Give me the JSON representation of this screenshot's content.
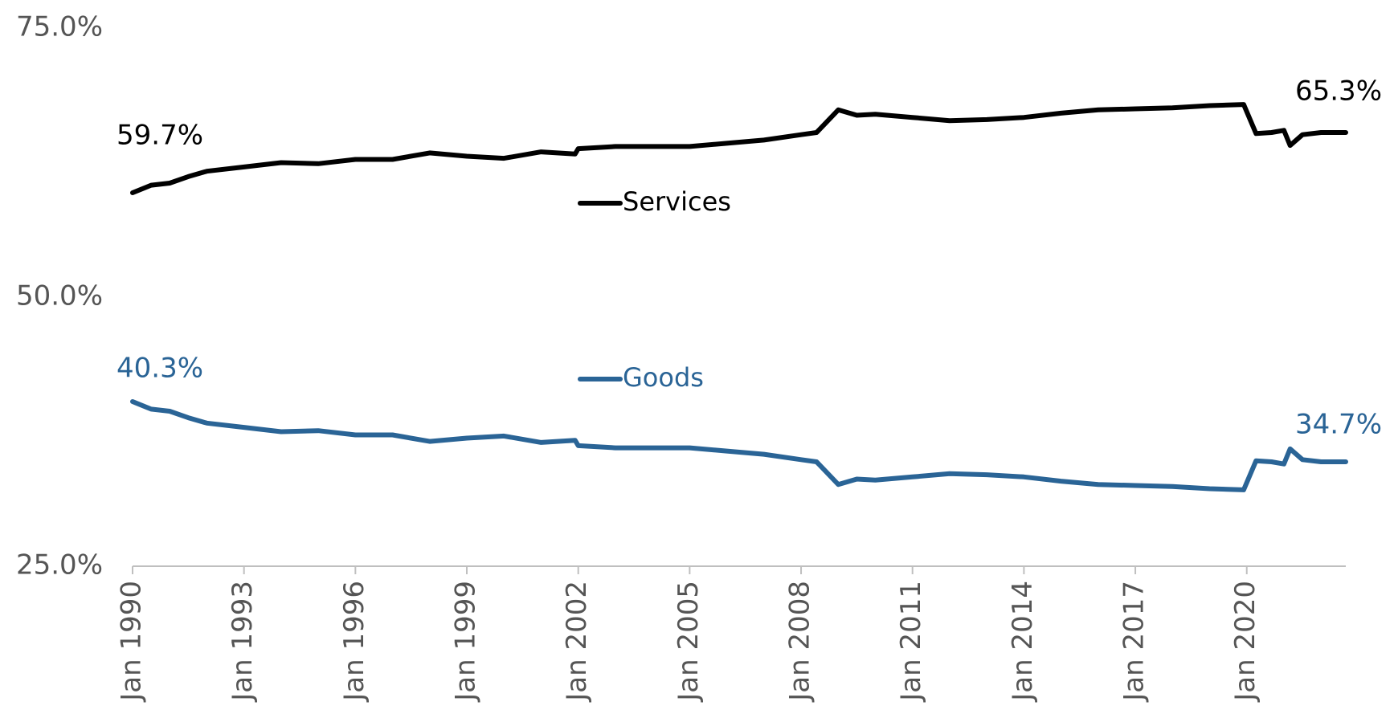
{
  "chart_data": {
    "type": "line",
    "ylim": [
      25,
      75
    ],
    "xlim": [
      "1990-01",
      "2022-09"
    ],
    "yticks": [
      {
        "value": 25,
        "label": "25.0%"
      },
      {
        "value": 50,
        "label": "50.0%"
      },
      {
        "value": 75,
        "label": "75.0%"
      }
    ],
    "xticks": [
      {
        "date": "1990-01",
        "label": "Jan 1990"
      },
      {
        "date": "1993-01",
        "label": "Jan 1993"
      },
      {
        "date": "1996-01",
        "label": "Jan 1996"
      },
      {
        "date": "1999-01",
        "label": "Jan 1999"
      },
      {
        "date": "2002-01",
        "label": "Jan 2002"
      },
      {
        "date": "2005-01",
        "label": "Jan 2005"
      },
      {
        "date": "2008-01",
        "label": "Jan 2008"
      },
      {
        "date": "2011-01",
        "label": "Jan 2011"
      },
      {
        "date": "2014-01",
        "label": "Jan 2014"
      },
      {
        "date": "2017-01",
        "label": "Jan 2017"
      },
      {
        "date": "2020-01",
        "label": "Jan 2020"
      }
    ],
    "series": [
      {
        "name": "Services",
        "color": "#000000",
        "points": [
          [
            "1990-01",
            59.7
          ],
          [
            "1990-07",
            60.4
          ],
          [
            "1991-01",
            60.6
          ],
          [
            "1991-07",
            61.2
          ],
          [
            "1992-01",
            61.7
          ],
          [
            "1993-01",
            62.1
          ],
          [
            "1994-01",
            62.5
          ],
          [
            "1995-01",
            62.4
          ],
          [
            "1996-01",
            62.8
          ],
          [
            "1997-01",
            62.8
          ],
          [
            "1998-01",
            63.4
          ],
          [
            "1999-01",
            63.1
          ],
          [
            "2000-01",
            62.9
          ],
          [
            "2001-01",
            63.5
          ],
          [
            "2001-12",
            63.3
          ],
          [
            "2002-01",
            63.8
          ],
          [
            "2003-01",
            64.0
          ],
          [
            "2004-01",
            64.0
          ],
          [
            "2005-01",
            64.0
          ],
          [
            "2006-01",
            64.3
          ],
          [
            "2007-01",
            64.6
          ],
          [
            "2008-01",
            65.1
          ],
          [
            "2008-06",
            65.3
          ],
          [
            "2009-01",
            67.4
          ],
          [
            "2009-07",
            66.9
          ],
          [
            "2010-01",
            67.0
          ],
          [
            "2011-01",
            66.7
          ],
          [
            "2012-01",
            66.4
          ],
          [
            "2013-01",
            66.5
          ],
          [
            "2014-01",
            66.7
          ],
          [
            "2015-01",
            67.1
          ],
          [
            "2016-01",
            67.4
          ],
          [
            "2017-01",
            67.5
          ],
          [
            "2018-01",
            67.6
          ],
          [
            "2019-01",
            67.8
          ],
          [
            "2019-12",
            67.9
          ],
          [
            "2020-04",
            65.2
          ],
          [
            "2020-09",
            65.3
          ],
          [
            "2021-01",
            65.5
          ],
          [
            "2021-03",
            64.1
          ],
          [
            "2021-07",
            65.1
          ],
          [
            "2022-01",
            65.3
          ],
          [
            "2022-09",
            65.3
          ]
        ],
        "labels": [
          {
            "date": "1990-01",
            "text": "59.7%"
          },
          {
            "date": "2022-09",
            "text": "65.3%"
          }
        ]
      },
      {
        "name": "Goods",
        "color": "#2a6496",
        "points": [
          [
            "1990-01",
            40.3
          ],
          [
            "1990-07",
            39.6
          ],
          [
            "1991-01",
            39.4
          ],
          [
            "1991-07",
            38.8
          ],
          [
            "1992-01",
            38.3
          ],
          [
            "1993-01",
            37.9
          ],
          [
            "1994-01",
            37.5
          ],
          [
            "1995-01",
            37.6
          ],
          [
            "1996-01",
            37.2
          ],
          [
            "1997-01",
            37.2
          ],
          [
            "1998-01",
            36.6
          ],
          [
            "1999-01",
            36.9
          ],
          [
            "2000-01",
            37.1
          ],
          [
            "2001-01",
            36.5
          ],
          [
            "2001-12",
            36.7
          ],
          [
            "2002-01",
            36.2
          ],
          [
            "2003-01",
            36.0
          ],
          [
            "2004-01",
            36.0
          ],
          [
            "2005-01",
            36.0
          ],
          [
            "2006-01",
            35.7
          ],
          [
            "2007-01",
            35.4
          ],
          [
            "2008-01",
            34.9
          ],
          [
            "2008-06",
            34.7
          ],
          [
            "2009-01",
            32.6
          ],
          [
            "2009-07",
            33.1
          ],
          [
            "2010-01",
            33.0
          ],
          [
            "2011-01",
            33.3
          ],
          [
            "2012-01",
            33.6
          ],
          [
            "2013-01",
            33.5
          ],
          [
            "2014-01",
            33.3
          ],
          [
            "2015-01",
            32.9
          ],
          [
            "2016-01",
            32.6
          ],
          [
            "2017-01",
            32.5
          ],
          [
            "2018-01",
            32.4
          ],
          [
            "2019-01",
            32.2
          ],
          [
            "2019-12",
            32.1
          ],
          [
            "2020-04",
            34.8
          ],
          [
            "2020-09",
            34.7
          ],
          [
            "2021-01",
            34.5
          ],
          [
            "2021-03",
            35.9
          ],
          [
            "2021-07",
            34.9
          ],
          [
            "2022-01",
            34.7
          ],
          [
            "2022-09",
            34.7
          ]
        ],
        "labels": [
          {
            "date": "1990-01",
            "text": "40.3%"
          },
          {
            "date": "2022-09",
            "text": "34.7%"
          }
        ]
      }
    ],
    "legend": [
      {
        "name": "Services",
        "color": "#000000"
      },
      {
        "name": "Goods",
        "color": "#2a6496"
      }
    ],
    "grid": false,
    "legend_placement": "center"
  }
}
